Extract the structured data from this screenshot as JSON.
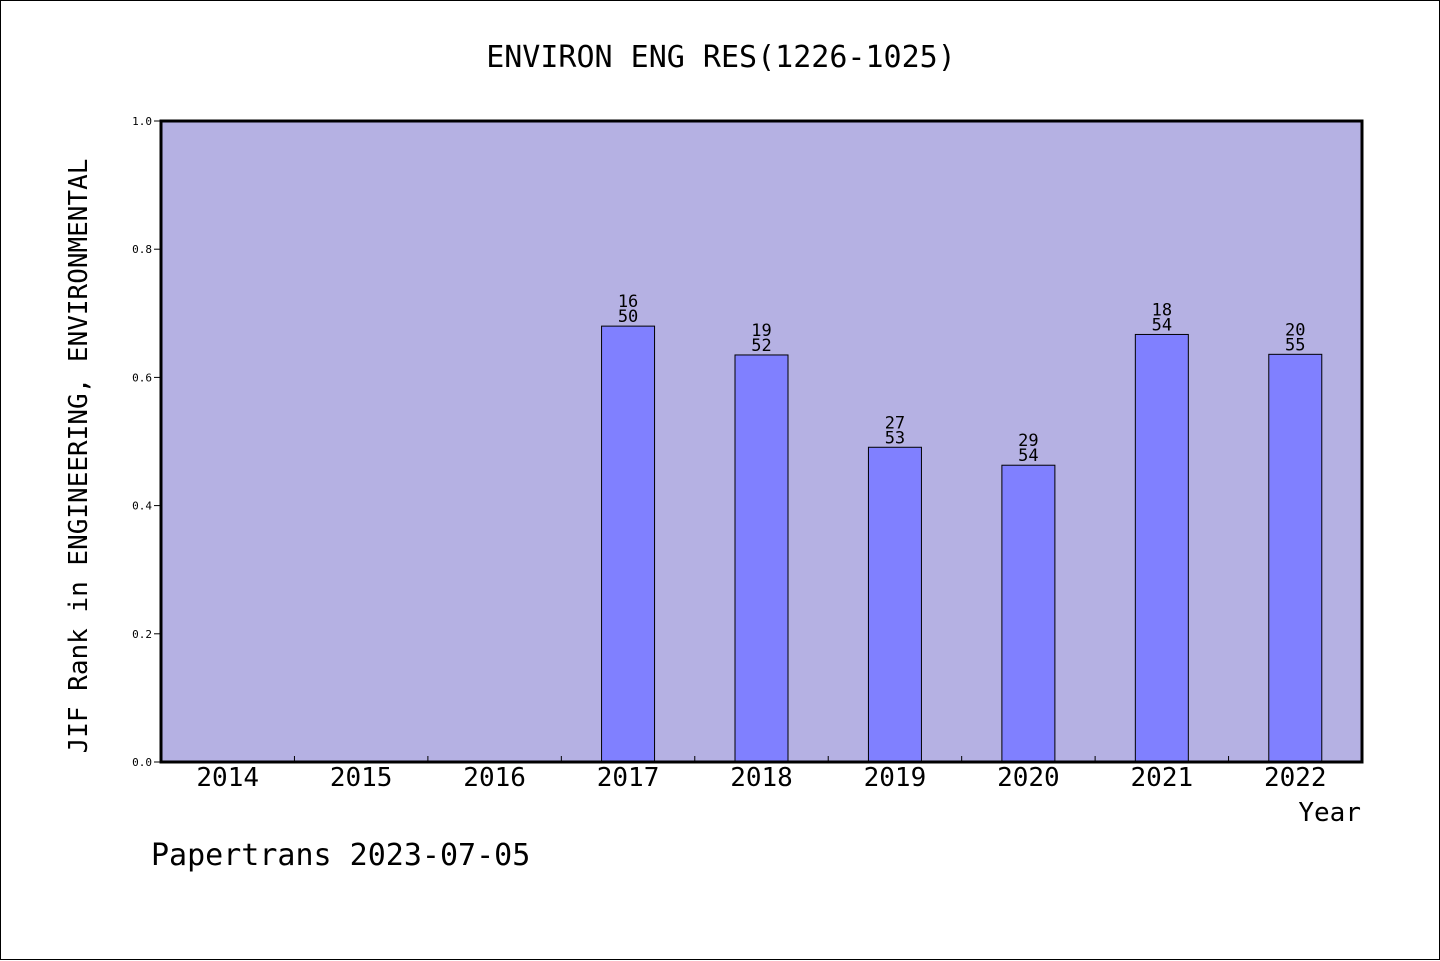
{
  "colors": {
    "plot_background": "#b5b1e3",
    "bar_fill": "#8080ff",
    "axis": "#000000",
    "text": "#000000"
  },
  "footer": {
    "credit": "Papertrans 2023-07-05"
  },
  "chart_data": {
    "type": "bar",
    "title": "ENVIRON ENG RES(1226-1025)",
    "xlabel": "Year",
    "ylabel": "JIF Rank in ENGINEERING, ENVIRONMENTAL",
    "ylim": [
      0,
      1
    ],
    "yticks": [
      "0.0",
      "0.2",
      "0.4",
      "0.6",
      "0.8",
      "1.0"
    ],
    "grid": false,
    "legend": "none",
    "categories": [
      "2014",
      "2015",
      "2016",
      "2017",
      "2018",
      "2019",
      "2020",
      "2021",
      "2022"
    ],
    "values": [
      null,
      null,
      null,
      0.68,
      0.635,
      0.491,
      0.463,
      0.667,
      0.636
    ],
    "rank": [
      null,
      null,
      null,
      "16",
      "19",
      "27",
      "29",
      "18",
      "20"
    ],
    "total": [
      null,
      null,
      null,
      "50",
      "52",
      "53",
      "54",
      "54",
      "55"
    ]
  }
}
